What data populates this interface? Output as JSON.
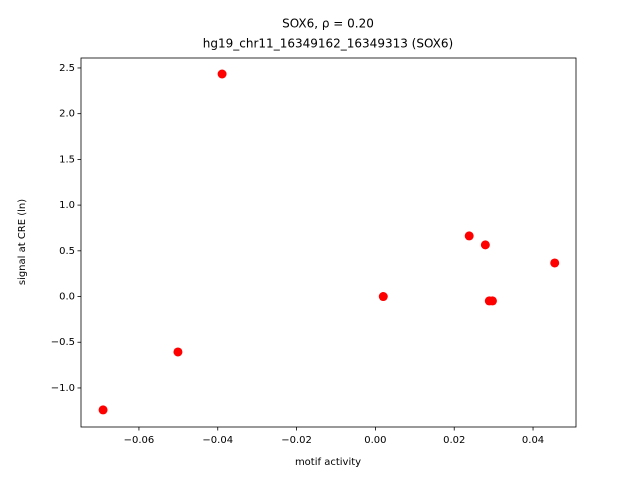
{
  "chart_data": {
    "type": "scatter",
    "title": "SOX6, ρ = 0.20",
    "subtitle": "hg19_chr11_16349162_16349313 (SOX6)",
    "x_label": "motif activity",
    "y_label": "signal at CRE (ln)",
    "color": "#ff0000",
    "x": [
      -0.0691,
      -0.0501,
      -0.0389,
      0.002,
      0.0238,
      0.0279,
      0.0289,
      0.0297,
      0.0455
    ],
    "values": [
      -1.24,
      -0.606,
      2.434,
      0.0,
      0.663,
      0.565,
      -0.048,
      -0.048,
      0.367
    ],
    "xlim": [
      -0.0747,
      0.0509
    ],
    "ylim": [
      -1.427,
      2.609
    ],
    "xticks": [
      {
        "value": -0.06,
        "label": "−0.06"
      },
      {
        "value": -0.04,
        "label": "−0.04"
      },
      {
        "value": -0.02,
        "label": "−0.02"
      },
      {
        "value": 0,
        "label": "0.00"
      },
      0.02,
      0.04
    ],
    "yticks": [
      {
        "value": -1.0,
        "label": "−1.0"
      },
      {
        "value": -0.5,
        "label": "−0.5"
      },
      {
        "value": 0,
        "label": "0.0"
      },
      0.5,
      {
        "value": 1.0,
        "label": "1.0"
      },
      1.5,
      {
        "value": 2.0,
        "label": "2.0"
      },
      2.5
    ],
    "grid": false
  }
}
